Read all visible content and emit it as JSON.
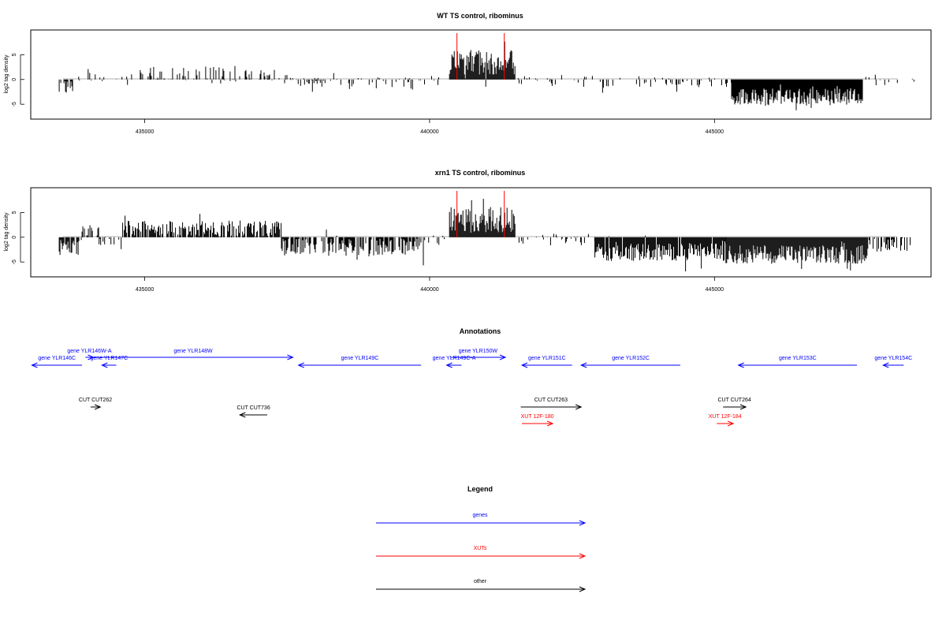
{
  "chart_data": [
    {
      "type": "bar",
      "title": "WT TS control, ribominus",
      "ylabel": "log2 tag density",
      "xlabel": "",
      "xlim": [
        433000,
        448800
      ],
      "ylim": [
        -8,
        10
      ],
      "xticks": [
        435000,
        440000,
        445000
      ],
      "xtick_labels": [
        "435000",
        "440000",
        "445000"
      ],
      "yticks": [
        -5,
        0,
        5
      ],
      "ytick_labels": [
        "-5",
        "0",
        "5"
      ],
      "grid": false,
      "markers": [
        440480,
        441310
      ],
      "marker_color": "#ff0000",
      "segments": [
        {
          "start": 433500,
          "end": 433800,
          "mean": -1.5,
          "amp": 1.4,
          "density": 0.55
        },
        {
          "start": 433800,
          "end": 434200,
          "mean": 0.8,
          "amp": 1.6,
          "density": 0.25
        },
        {
          "start": 434200,
          "end": 434700,
          "mean": -0.3,
          "amp": 1.0,
          "density": 0.2
        },
        {
          "start": 434700,
          "end": 436500,
          "mean": 1.2,
          "amp": 1.4,
          "density": 0.35
        },
        {
          "start": 436500,
          "end": 437500,
          "mean": 0.8,
          "amp": 1.2,
          "density": 0.3
        },
        {
          "start": 437500,
          "end": 439800,
          "mean": -0.8,
          "amp": 1.3,
          "density": 0.25
        },
        {
          "start": 439800,
          "end": 440350,
          "mean": -0.2,
          "amp": 1.0,
          "density": 0.2
        },
        {
          "start": 440350,
          "end": 441500,
          "mean": 3.5,
          "amp": 2.5,
          "density": 1.0
        },
        {
          "start": 441500,
          "end": 444200,
          "mean": -0.3,
          "amp": 1.2,
          "density": 0.2
        },
        {
          "start": 444200,
          "end": 445300,
          "mean": -0.6,
          "amp": 1.0,
          "density": 0.2
        },
        {
          "start": 445300,
          "end": 447600,
          "mean": -3.5,
          "amp": 1.8,
          "density": 1.0
        },
        {
          "start": 447600,
          "end": 448500,
          "mean": -0.4,
          "amp": 1.0,
          "density": 0.3
        }
      ]
    },
    {
      "type": "bar",
      "title": "xrn1 TS control, ribominus",
      "ylabel": "log2 tag density",
      "xlabel": "",
      "xlim": [
        433000,
        448800
      ],
      "ylim": [
        -8,
        10
      ],
      "xticks": [
        435000,
        440000,
        445000
      ],
      "xtick_labels": [
        "435000",
        "440000",
        "445000"
      ],
      "yticks": [
        -5,
        0,
        5
      ],
      "ytick_labels": [
        "-5",
        "0",
        "5"
      ],
      "grid": false,
      "markers": [
        440480,
        441310
      ],
      "marker_color": "#ff0000",
      "segments": [
        {
          "start": 433500,
          "end": 433900,
          "mean": -2.0,
          "amp": 1.6,
          "density": 0.8
        },
        {
          "start": 433900,
          "end": 434200,
          "mean": 1.5,
          "amp": 1.5,
          "density": 0.6
        },
        {
          "start": 434200,
          "end": 434600,
          "mean": -1.0,
          "amp": 1.4,
          "density": 0.3
        },
        {
          "start": 434600,
          "end": 437400,
          "mean": 1.8,
          "amp": 1.6,
          "density": 0.75
        },
        {
          "start": 437400,
          "end": 439900,
          "mean": -2.0,
          "amp": 1.8,
          "density": 0.7
        },
        {
          "start": 439900,
          "end": 440350,
          "mean": -0.5,
          "amp": 1.2,
          "density": 0.3
        },
        {
          "start": 440350,
          "end": 441500,
          "mean": 3.5,
          "amp": 2.6,
          "density": 1.0
        },
        {
          "start": 441500,
          "end": 442900,
          "mean": -0.5,
          "amp": 1.2,
          "density": 0.3
        },
        {
          "start": 442900,
          "end": 445200,
          "mean": -3.0,
          "amp": 1.8,
          "density": 0.95
        },
        {
          "start": 445200,
          "end": 447700,
          "mean": -3.5,
          "amp": 1.9,
          "density": 1.0
        },
        {
          "start": 447700,
          "end": 448500,
          "mean": -1.5,
          "amp": 1.4,
          "density": 0.5
        }
      ]
    }
  ],
  "annotations": {
    "title": "Annotations",
    "features": [
      {
        "label": "gene YLR146C",
        "type": "gene",
        "strand": "-",
        "start": 433020,
        "end": 433900
      },
      {
        "label": "gene YLR146W-A",
        "type": "gene",
        "strand": "+",
        "start": 433960,
        "end": 434100
      },
      {
        "label": "gene YLR147C",
        "type": "gene",
        "strand": "-",
        "start": 434250,
        "end": 434500
      },
      {
        "label": "gene YLR148W",
        "type": "gene",
        "strand": "+",
        "start": 434100,
        "end": 437600
      },
      {
        "label": "gene YLR149C",
        "type": "gene",
        "strand": "-",
        "start": 437700,
        "end": 439850
      },
      {
        "label": "gene YLR149C-A",
        "type": "gene",
        "strand": "-",
        "start": 440300,
        "end": 440560
      },
      {
        "label": "gene YLR150W",
        "type": "gene",
        "strand": "+",
        "start": 440370,
        "end": 441330
      },
      {
        "label": "gene YLR151C",
        "type": "gene",
        "strand": "-",
        "start": 441620,
        "end": 442500
      },
      {
        "label": "gene YLR152C",
        "type": "gene",
        "strand": "-",
        "start": 442660,
        "end": 444400
      },
      {
        "label": "gene YLR153C",
        "type": "gene",
        "strand": "-",
        "start": 445420,
        "end": 447500
      },
      {
        "label": "gene YLR154C",
        "type": "gene",
        "strand": "-",
        "start": 447960,
        "end": 448320
      },
      {
        "label": "CUT CUT262",
        "type": "other",
        "strand": "+",
        "start": 434050,
        "end": 434220
      },
      {
        "label": "CUT CUT736",
        "type": "other",
        "strand": "-",
        "start": 436670,
        "end": 437150
      },
      {
        "label": "CUT CUT263",
        "type": "other",
        "strand": "+",
        "start": 441600,
        "end": 442660
      },
      {
        "label": "CUT CUT264",
        "type": "other",
        "strand": "+",
        "start": 445150,
        "end": 445550
      },
      {
        "label": "XUT 12F-180",
        "type": "xut",
        "strand": "+",
        "start": 441620,
        "end": 442160
      },
      {
        "label": "XUT 12F-184",
        "type": "xut",
        "strand": "+",
        "start": 445040,
        "end": 445330
      }
    ]
  },
  "legend": {
    "title": "Legend",
    "items": [
      {
        "label": "genes",
        "color": "#0000ff"
      },
      {
        "label": "XUTs",
        "color": "#ff0000"
      },
      {
        "label": "other",
        "color": "#000000"
      }
    ]
  },
  "colors": {
    "gene": "#0000ff",
    "xut": "#ff0000",
    "other": "#000000"
  }
}
